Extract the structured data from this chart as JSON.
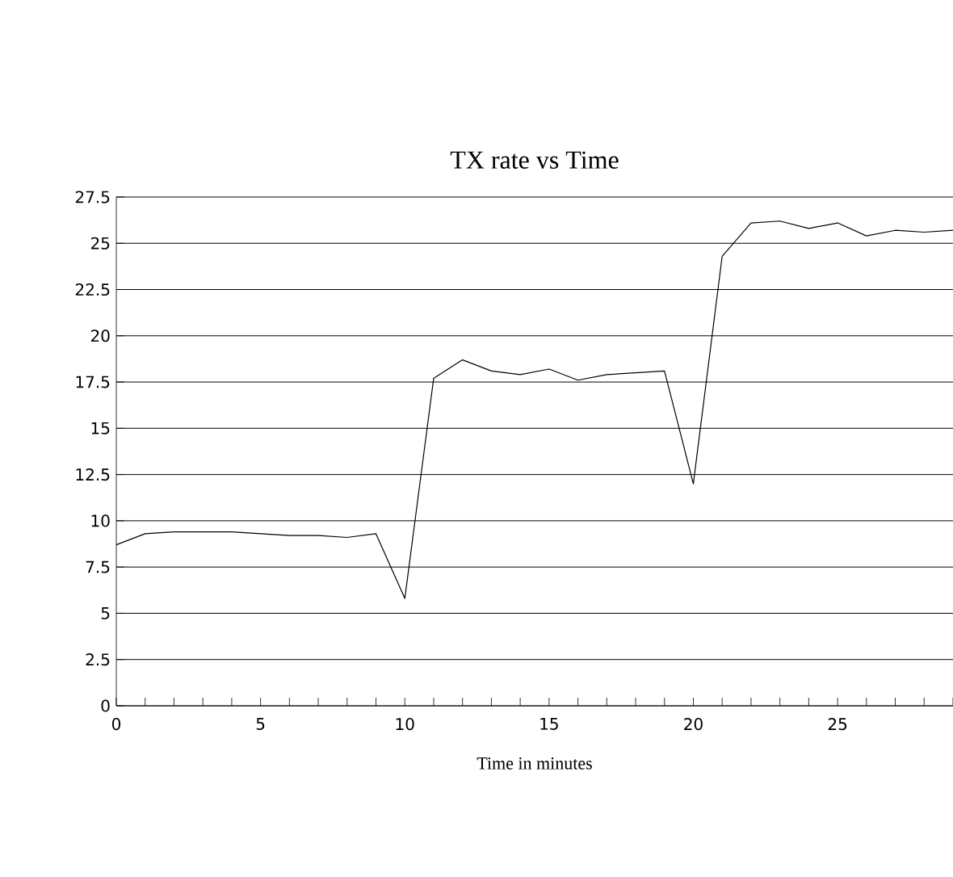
{
  "chart_data": {
    "type": "line",
    "title": "TX rate vs Time",
    "xlabel": "Time in minutes",
    "x": [
      0,
      1,
      2,
      3,
      4,
      5,
      6,
      7,
      8,
      9,
      10,
      11,
      12,
      13,
      14,
      15,
      16,
      17,
      18,
      19,
      20,
      21,
      22,
      23,
      24,
      25,
      26,
      27,
      28,
      29
    ],
    "series": [
      {
        "color": "#000000",
        "values": [
          8.7,
          9.3,
          9.4,
          9.4,
          9.4,
          9.3,
          9.2,
          9.2,
          9.1,
          9.3,
          5.8,
          17.7,
          18.7,
          18.1,
          17.9,
          18.2,
          17.6,
          17.9,
          18.0,
          18.1,
          12.0,
          24.3,
          26.1,
          26.2,
          25.8,
          26.1,
          25.4,
          25.7,
          25.6,
          25.7
        ]
      }
    ],
    "xlim": [
      0,
      29
    ],
    "xticks": [
      0,
      {
        "value": 1,
        "label": null
      },
      {
        "value": 2,
        "label": null
      },
      {
        "value": 3,
        "label": null
      },
      {
        "value": 4,
        "label": null
      },
      5,
      {
        "value": 6,
        "label": null
      },
      {
        "value": 7,
        "label": null
      },
      {
        "value": 8,
        "label": null
      },
      {
        "value": 9,
        "label": null
      },
      10,
      {
        "value": 11,
        "label": null
      },
      {
        "value": 12,
        "label": null
      },
      {
        "value": 13,
        "label": null
      },
      {
        "value": 14,
        "label": null
      },
      15,
      {
        "value": 16,
        "label": null
      },
      {
        "value": 17,
        "label": null
      },
      {
        "value": 18,
        "label": null
      },
      {
        "value": 19,
        "label": null
      },
      20,
      {
        "value": 21,
        "label": null
      },
      {
        "value": 22,
        "label": null
      },
      {
        "value": 23,
        "label": null
      },
      {
        "value": 24,
        "label": null
      },
      25,
      {
        "value": 26,
        "label": null
      },
      {
        "value": 27,
        "label": null
      },
      {
        "value": 28,
        "label": null
      },
      {
        "value": 29,
        "label": null
      }
    ],
    "ylim": [
      0,
      27.5
    ],
    "yticks": [
      0,
      2.5,
      5,
      7.5,
      10,
      12.5,
      15,
      17.5,
      20,
      22.5,
      25,
      27.5
    ],
    "grid": "y",
    "marker": "none",
    "line_style": "solid"
  }
}
